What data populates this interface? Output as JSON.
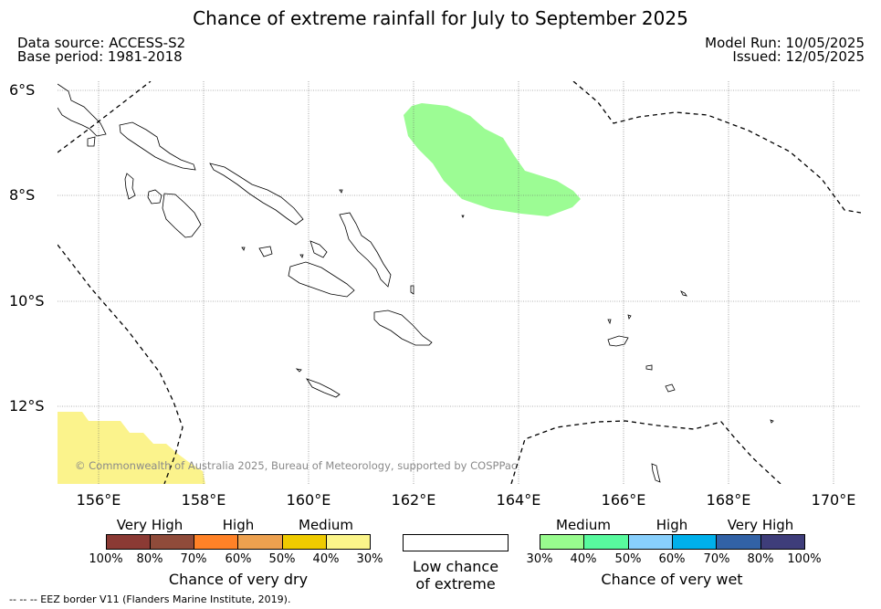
{
  "title": "Chance of extreme rainfall for July to September 2025",
  "data_source": "Data source: ACCESS-S2",
  "base_period": "Base period: 1981-2018",
  "model_run": "Model Run: 10/05/2025",
  "issued": "Issued: 12/05/2025",
  "map": {
    "latitude_labels": [
      "6°S",
      "8°S",
      "10°S",
      "12°S"
    ],
    "longitude_labels": [
      "156°E",
      "158°E",
      "160°E",
      "162°E",
      "164°E",
      "166°E",
      "168°E",
      "170°E"
    ],
    "copyright": "© Commonwealth of Australia 2025, Bureau of Meteorology, supported by COSPPac",
    "wet_region_color": "#9cfc94",
    "dry_region_color": "#fbf38c",
    "regions": [
      {
        "category": "Medium chance of very wet",
        "area": "east of the Solomon Islands, about 162°E–165°E, 6°S–8°S"
      },
      {
        "category": "Medium chance of very dry",
        "area": "south-west corner, about 155°E–158°E, 12°S–13.5°S"
      }
    ]
  },
  "dry_legend": {
    "categories": [
      "Very High",
      "High",
      "Medium"
    ],
    "colors": [
      "#8b3a34",
      "#8f4b3a",
      "#ff8227",
      "#eda14f",
      "#efcb00",
      "#fbf58a"
    ],
    "ticks": [
      "100%",
      "80%",
      "70%",
      "60%",
      "50%",
      "40%",
      "30%"
    ],
    "title": "Chance of very dry"
  },
  "neutral_legend": {
    "line1": "Low chance",
    "line2": "of extreme"
  },
  "wet_legend": {
    "categories": [
      "Medium",
      "High",
      "Very High"
    ],
    "colors": [
      "#98fb8e",
      "#58fa9e",
      "#88cffc",
      "#00b0eb",
      "#3262a6",
      "#3e3d7a"
    ],
    "ticks": [
      "30%",
      "40%",
      "50%",
      "60%",
      "70%",
      "80%",
      "100%"
    ],
    "title": "Chance of very wet"
  },
  "footnote": "--  --  -- EEZ border V11 (Flanders Marine Institute, 2019)."
}
